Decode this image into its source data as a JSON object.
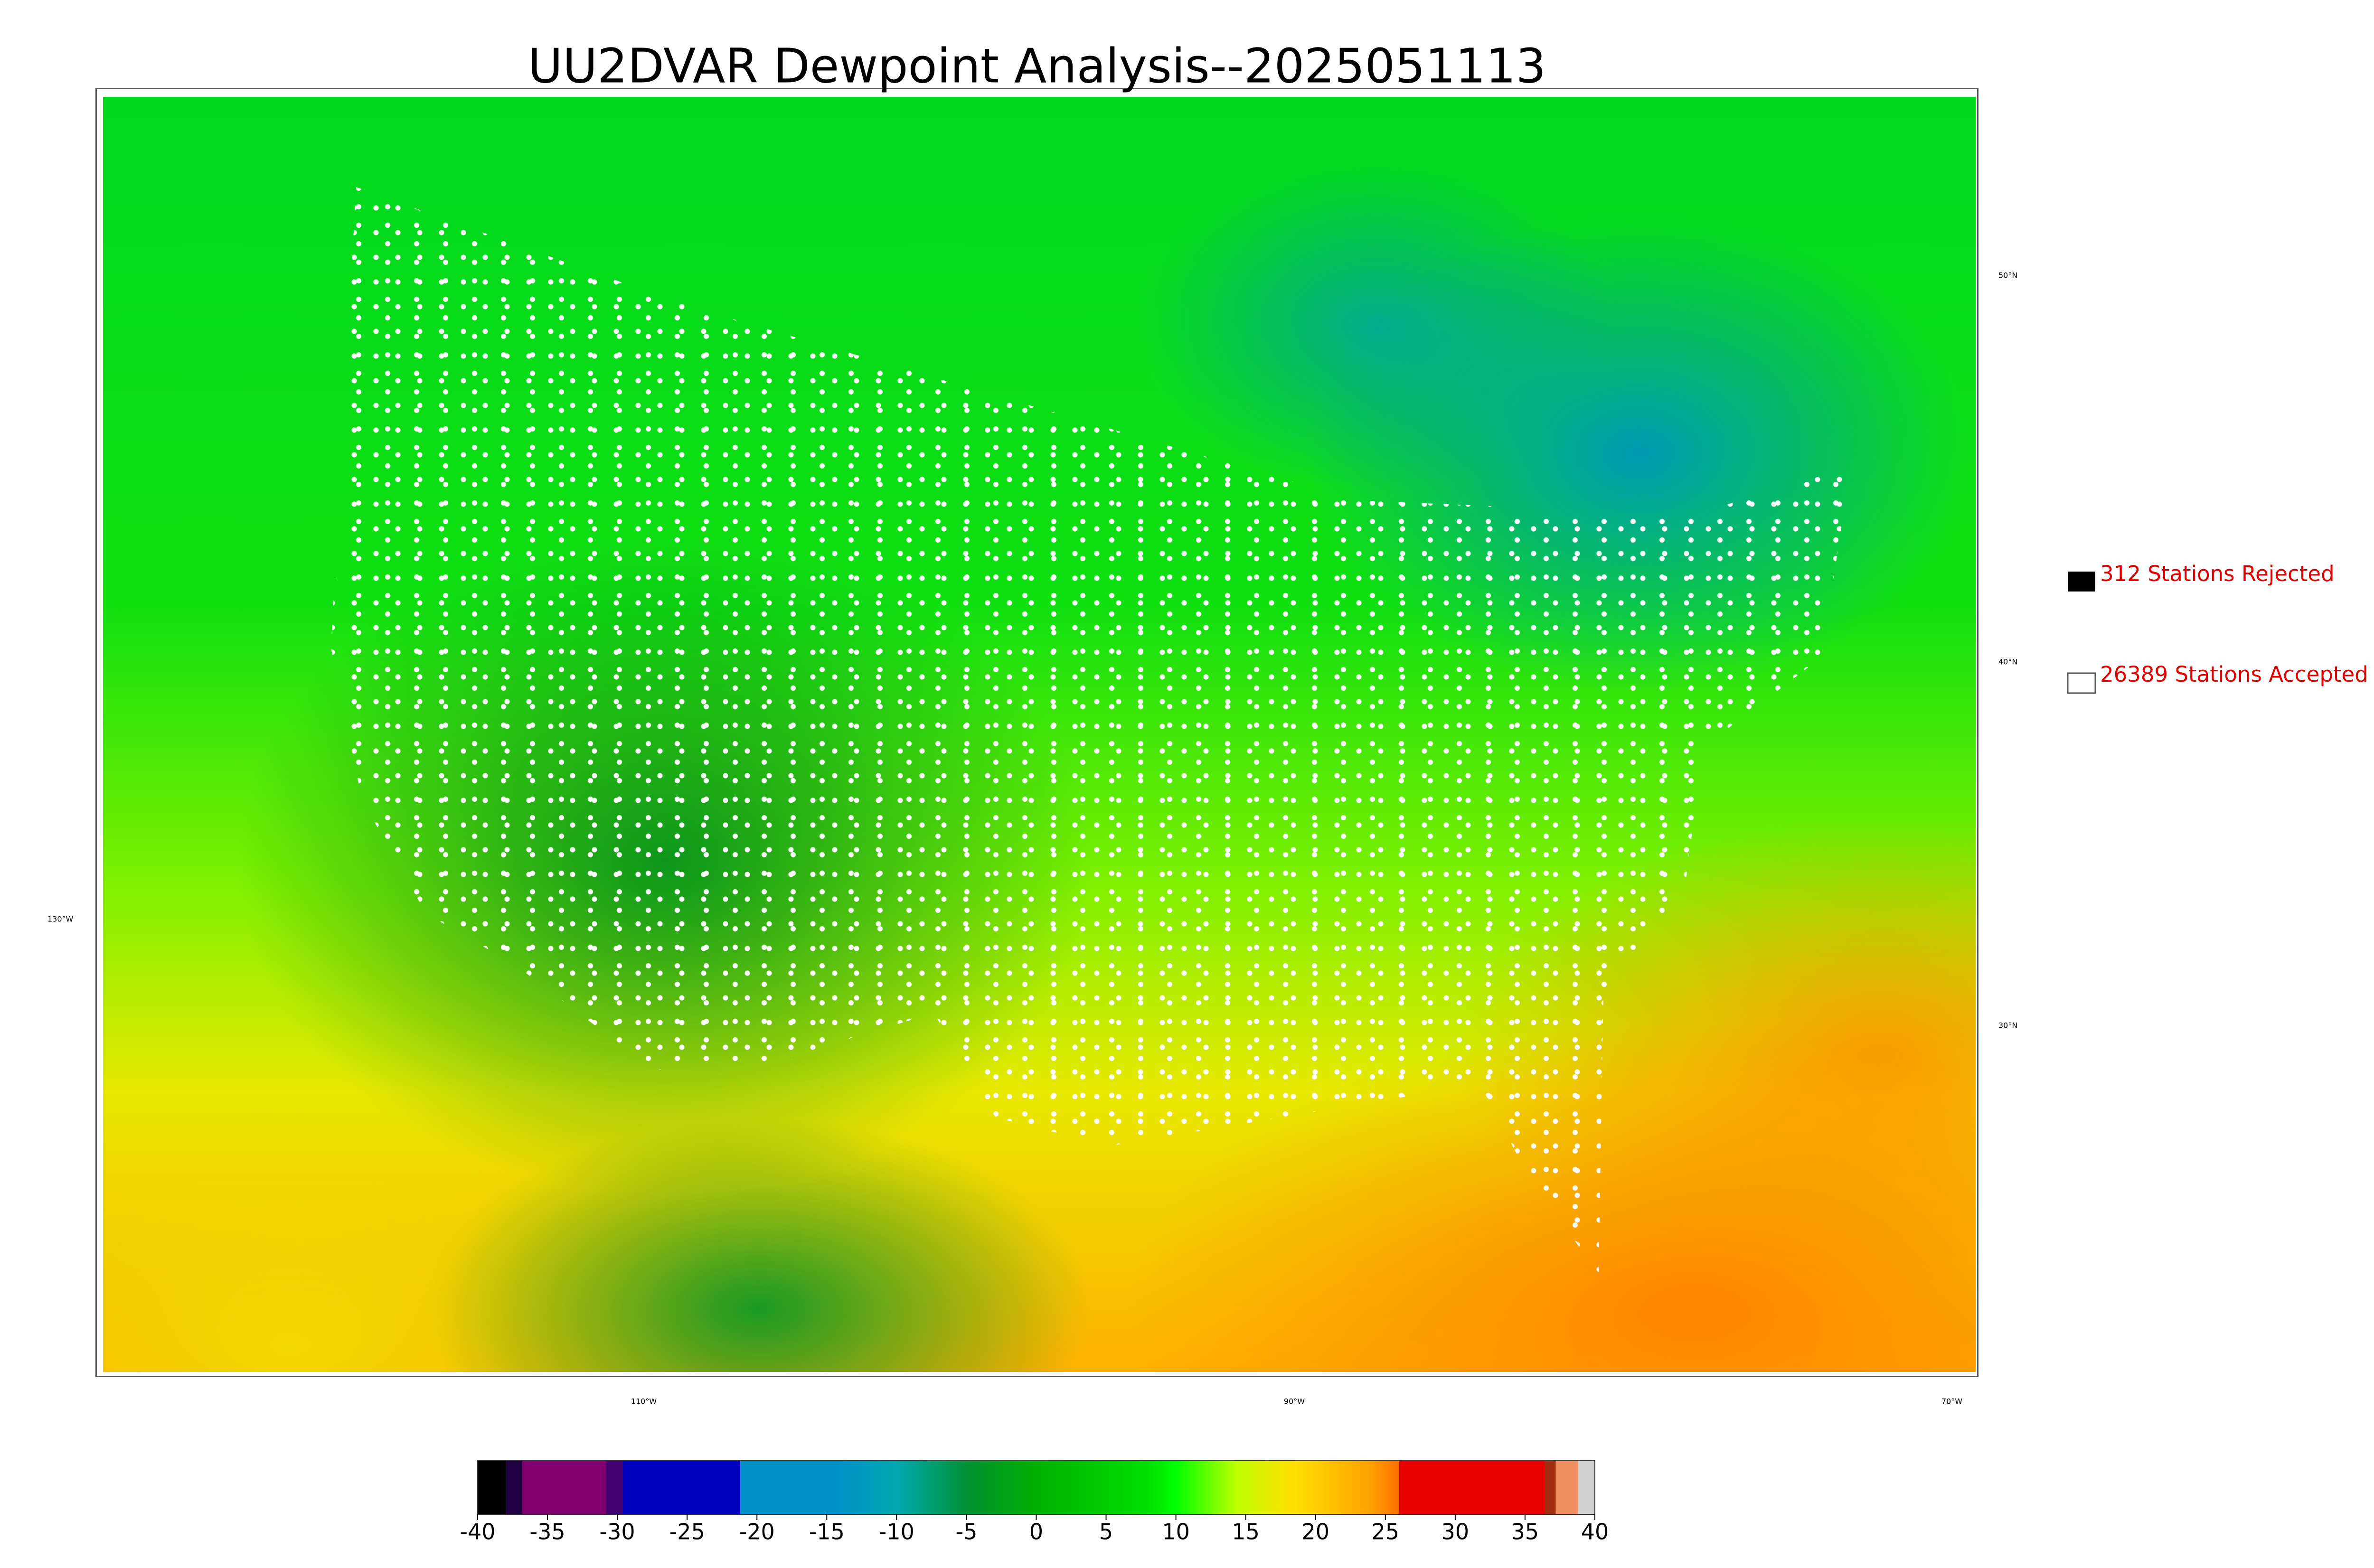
{
  "title": "UU2DVAR Dewpoint Analysis--2025051113",
  "legend": [
    {
      "label": "312 Stations Rejected"
    },
    {
      "label": "26389 Stations Accepted"
    }
  ],
  "graticule": {
    "lat_labels": [
      "50°N",
      "40°N",
      "30°N"
    ],
    "lon_labels": [
      "130°W",
      "110°W",
      "90°W",
      "70°W"
    ]
  },
  "colorbar": {
    "range": [
      -40,
      40
    ],
    "ticks": [
      -40,
      -35,
      -30,
      -25,
      -20,
      -15,
      -10,
      -5,
      0,
      5,
      10,
      15,
      20,
      25,
      30,
      35,
      40
    ]
  }
}
